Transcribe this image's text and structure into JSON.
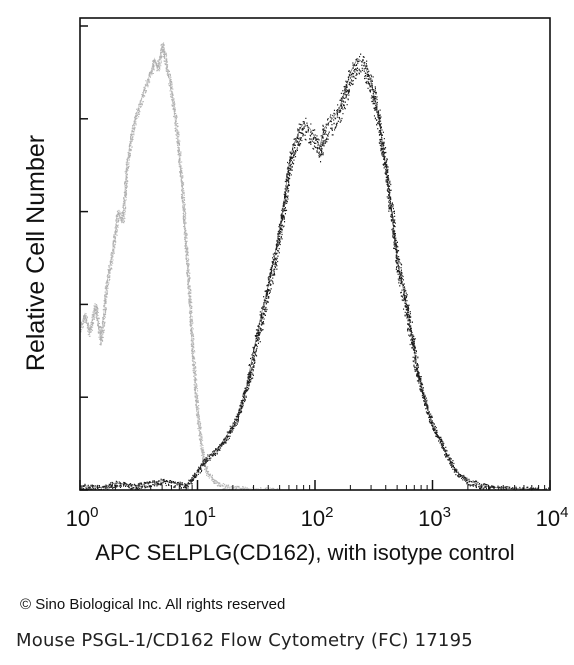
{
  "chart_data": {
    "type": "area",
    "xlabel": "APC SELPLG(CD162), with isotype control",
    "ylabel": "Relative Cell Number",
    "xscale": "log",
    "xlim": [
      1,
      10000
    ],
    "x_ticks": [
      {
        "value": 1,
        "base": "10",
        "exp": "0"
      },
      {
        "value": 10,
        "base": "10",
        "exp": "1"
      },
      {
        "value": 100,
        "base": "10",
        "exp": "2"
      },
      {
        "value": 1000,
        "base": "10",
        "exp": "3"
      },
      {
        "value": 10000,
        "base": "10",
        "exp": "4"
      }
    ],
    "ylim": [
      0,
      100
    ],
    "y_tick_values": [
      0,
      20,
      40,
      60,
      80,
      100
    ],
    "grid": false,
    "series": [
      {
        "color": "#b0b0b0",
        "x": [
          1,
          1.1,
          1.2,
          1.35,
          1.5,
          1.7,
          1.9,
          2.1,
          2.3,
          2.5,
          2.8,
          3.1,
          3.4,
          3.7,
          4.0,
          4.3,
          4.6,
          5.0,
          5.4,
          5.8,
          6.3,
          6.8,
          7.4,
          8.0,
          8.6,
          9.2,
          10,
          11,
          12,
          14,
          16,
          20,
          30,
          50
        ],
        "y": [
          35,
          38,
          34,
          40,
          32,
          45,
          52,
          60,
          58,
          70,
          78,
          82,
          85,
          88,
          90,
          93,
          91,
          96,
          92,
          88,
          82,
          75,
          65,
          52,
          40,
          28,
          16,
          8,
          4,
          2,
          1,
          0.5,
          0.2,
          0
        ]
      },
      {
        "color": "#1e1e1e",
        "x": [
          1,
          1.5,
          2,
          3,
          5,
          8,
          10,
          12,
          15,
          18,
          22,
          26,
          30,
          35,
          40,
          45,
          50,
          55,
          60,
          65,
          70,
          75,
          80,
          90,
          100,
          110,
          120,
          140,
          160,
          180,
          200,
          230,
          260,
          300,
          350,
          400,
          450,
          500,
          600,
          700,
          800,
          1000,
          1300,
          1600,
          2000,
          2600,
          3500,
          5000,
          7000,
          10000
        ],
        "y": [
          1,
          0.5,
          1.5,
          1,
          2,
          1,
          4,
          7,
          9,
          12,
          16,
          22,
          30,
          38,
          44,
          50,
          56,
          63,
          70,
          74,
          76,
          78,
          79,
          78,
          76,
          74,
          78,
          80,
          82,
          86,
          90,
          93,
          92,
          88,
          80,
          70,
          60,
          50,
          40,
          30,
          22,
          14,
          8,
          4,
          2,
          1,
          0.5,
          0.3,
          0.2,
          0
        ]
      }
    ]
  },
  "copyright": "© Sino Biological Inc. All rights reserved",
  "caption": "Mouse PSGL-1/CD162 Flow Cytometry (FC) 17195"
}
